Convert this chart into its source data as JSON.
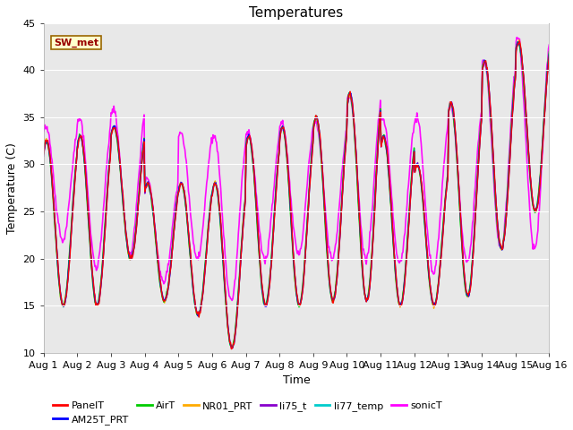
{
  "title": "Temperatures",
  "ylabel": "Temperature (C)",
  "xlabel": "Time",
  "ylim": [
    10,
    45
  ],
  "yticks": [
    10,
    15,
    20,
    25,
    30,
    35,
    40,
    45
  ],
  "xtick_labels": [
    "Aug 1",
    "Aug 2",
    "Aug 3",
    "Aug 4",
    "Aug 5",
    "Aug 6",
    "Aug 7",
    "Aug 8",
    "Aug 9",
    "Aug 10",
    "Aug 11",
    "Aug 12",
    "Aug 13",
    "Aug 14",
    "Aug 15",
    "Aug 16"
  ],
  "series": {
    "PanelT": {
      "color": "#ff0000",
      "lw": 1.0
    },
    "AM25T_PRT": {
      "color": "#0000ff",
      "lw": 1.0
    },
    "AirT": {
      "color": "#00cc00",
      "lw": 1.0
    },
    "NR01_PRT": {
      "color": "#ffaa00",
      "lw": 1.0
    },
    "li75_t": {
      "color": "#8800cc",
      "lw": 1.0
    },
    "li77_temp": {
      "color": "#00cccc",
      "lw": 1.0
    },
    "sonicT": {
      "color": "#ff00ff",
      "lw": 1.2
    }
  },
  "annotation_text": "SW_met",
  "annotation_bg": "#ffffcc",
  "annotation_edge": "#996600",
  "annotation_textcolor": "#990000",
  "fig_bg": "#ffffff",
  "plot_bg": "#e8e8e8",
  "title_fontsize": 11,
  "label_fontsize": 9,
  "tick_fontsize": 8
}
